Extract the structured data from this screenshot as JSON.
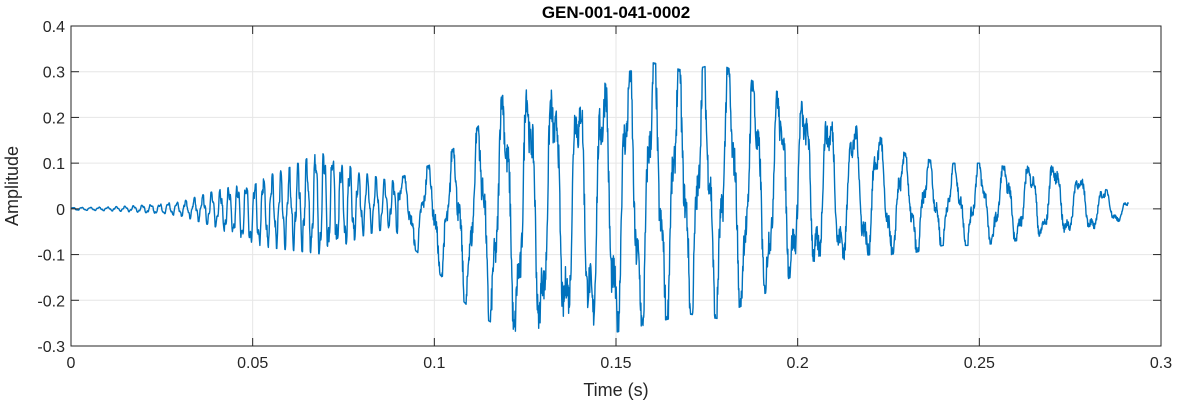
{
  "chart_data": {
    "type": "line",
    "title": "GEN-001-041-0002",
    "xlabel": "Time (s)",
    "ylabel": "Amplitude",
    "xlim": [
      0,
      0.3
    ],
    "ylim": [
      -0.3,
      0.4
    ],
    "xticks": [
      0,
      0.05,
      0.1,
      0.15,
      0.2,
      0.25,
      0.3
    ],
    "xtick_labels": [
      "0",
      "0.05",
      "0.1",
      "0.15",
      "0.2",
      "0.25",
      "0.3"
    ],
    "yticks": [
      -0.3,
      -0.2,
      -0.1,
      0,
      0.1,
      0.2,
      0.3,
      0.4
    ],
    "ytick_labels": [
      "-0.3",
      "-0.2",
      "-0.1",
      "0",
      "0.1",
      "0.2",
      "0.3",
      "0.4"
    ],
    "grid": true,
    "line_color": "#0072BD",
    "duration_s": 0.291,
    "series": [
      {
        "envelope": [
          {
            "t": 0.0,
            "max": 0.003,
            "min": -0.003
          },
          {
            "t": 0.01,
            "max": 0.004,
            "min": -0.004
          },
          {
            "t": 0.02,
            "max": 0.008,
            "min": -0.008
          },
          {
            "t": 0.03,
            "max": 0.015,
            "min": -0.015
          },
          {
            "t": 0.04,
            "max": 0.04,
            "min": -0.04
          },
          {
            "t": 0.05,
            "max": 0.06,
            "min": -0.08
          },
          {
            "t": 0.06,
            "max": 0.09,
            "min": -0.09
          },
          {
            "t": 0.07,
            "max": 0.13,
            "min": -0.1
          },
          {
            "t": 0.08,
            "max": 0.08,
            "min": -0.06
          },
          {
            "t": 0.088,
            "max": 0.06,
            "min": -0.04
          },
          {
            "t": 0.1,
            "max": 0.1,
            "min": -0.13
          },
          {
            "t": 0.11,
            "max": 0.16,
            "min": -0.22
          },
          {
            "t": 0.12,
            "max": 0.26,
            "min": -0.27
          },
          {
            "t": 0.13,
            "max": 0.26,
            "min": -0.26
          },
          {
            "t": 0.14,
            "max": 0.26,
            "min": -0.25
          },
          {
            "t": 0.15,
            "max": 0.29,
            "min": -0.27
          },
          {
            "t": 0.16,
            "max": 0.32,
            "min": -0.25
          },
          {
            "t": 0.17,
            "max": 0.3,
            "min": -0.23
          },
          {
            "t": 0.178,
            "max": 0.32,
            "min": -0.24
          },
          {
            "t": 0.19,
            "max": 0.27,
            "min": -0.19
          },
          {
            "t": 0.2,
            "max": 0.24,
            "min": -0.14
          },
          {
            "t": 0.21,
            "max": 0.2,
            "min": -0.12
          },
          {
            "t": 0.22,
            "max": 0.17,
            "min": -0.1
          },
          {
            "t": 0.23,
            "max": 0.12,
            "min": -0.1
          },
          {
            "t": 0.24,
            "max": 0.1,
            "min": -0.08
          },
          {
            "t": 0.25,
            "max": 0.1,
            "min": -0.08
          },
          {
            "t": 0.26,
            "max": 0.09,
            "min": -0.07
          },
          {
            "t": 0.27,
            "max": 0.1,
            "min": -0.06
          },
          {
            "t": 0.28,
            "max": 0.06,
            "min": -0.05
          },
          {
            "t": 0.291,
            "max": 0.02,
            "min": -0.02
          }
        ]
      }
    ]
  }
}
